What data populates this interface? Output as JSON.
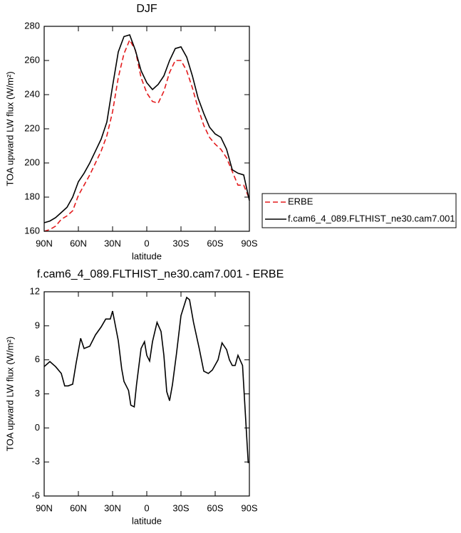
{
  "chart_data": [
    {
      "type": "line",
      "title": "DJF",
      "xlabel": "latitude",
      "ylabel": "TOA upward LW flux (W/m²)",
      "x": [
        90,
        85,
        80,
        75,
        70,
        65,
        60,
        55,
        50,
        45,
        40,
        35,
        30,
        25,
        20,
        15,
        10,
        5,
        0,
        -5,
        -10,
        -15,
        -20,
        -25,
        -30,
        -35,
        -40,
        -45,
        -50,
        -55,
        -60,
        -65,
        -70,
        -75,
        -80,
        -85,
        -90
      ],
      "series": [
        {
          "name": "ERBE",
          "color": "#e31a1c",
          "line_style": "dashed",
          "values": [
            160,
            161,
            163,
            167,
            169,
            172,
            181,
            187,
            193,
            200,
            207,
            216,
            230,
            250,
            264,
            272,
            266,
            250,
            241,
            236,
            235,
            242,
            253,
            260,
            260,
            254,
            244,
            232,
            222,
            215,
            211,
            208,
            203,
            195,
            187,
            187,
            179
          ]
        },
        {
          "name": "f.cam6_4_089.FLTHIST_ne30.cam7.001",
          "color": "#000000",
          "line_style": "solid",
          "values": [
            165,
            166,
            168,
            171,
            174,
            180,
            189,
            194,
            200,
            207,
            214,
            224,
            245,
            265,
            274,
            275,
            266,
            254,
            247,
            243,
            246,
            251,
            260,
            267,
            268,
            262,
            251,
            238,
            229,
            221,
            217,
            215,
            208,
            196,
            194,
            193,
            178
          ]
        }
      ],
      "xlim": [
        90,
        -90
      ],
      "xticks": [
        {
          "value": 90,
          "label": "90N"
        },
        {
          "value": 60,
          "label": "60N"
        },
        {
          "value": 30,
          "label": "30N"
        },
        0,
        {
          "value": -30,
          "label": "30S"
        },
        {
          "value": -60,
          "label": "60S"
        },
        {
          "value": -90,
          "label": "90S"
        }
      ],
      "ylim": [
        160,
        280
      ],
      "yticks": [
        160,
        180,
        200,
        220,
        240,
        260,
        280
      ],
      "legend": "right"
    },
    {
      "type": "line",
      "title": "f.cam6_4_089.FLTHIST_ne30.cam7.001 - ERBE",
      "xlabel": "latitude",
      "ylabel": "TOA upward LW flux (W/m²)",
      "x": [
        90,
        85,
        80,
        75,
        72,
        69,
        65,
        62,
        58,
        55,
        50,
        45,
        40,
        36,
        32,
        30,
        25,
        22,
        20,
        16,
        14,
        11,
        9,
        5,
        2,
        0,
        -2.5,
        -5,
        -9,
        -12.5,
        -15,
        -17.5,
        -20,
        -22.5,
        -26,
        -30,
        -35,
        -37.5,
        -41,
        -46,
        -50,
        -54,
        -57.5,
        -62.5,
        -66,
        -70,
        -72.5,
        -75,
        -77.5,
        -80,
        -84,
        -89
      ],
      "values": [
        5.4,
        5.85,
        5.4,
        4.8,
        3.7,
        3.7,
        3.85,
        5.7,
        7.9,
        7.0,
        7.2,
        8.2,
        8.9,
        9.6,
        9.6,
        10.3,
        7.7,
        5.2,
        4.1,
        3.3,
        2.0,
        1.85,
        3.8,
        7.0,
        7.6,
        6.4,
        5.9,
        7.6,
        9.3,
        8.5,
        6.4,
        3.2,
        2.4,
        3.8,
        6.5,
        9.9,
        11.5,
        11.3,
        9.3,
        7.0,
        5.0,
        4.8,
        5.1,
        6.0,
        7.5,
        6.9,
        6.0,
        5.5,
        5.5,
        6.4,
        5.5,
        -3.1
      ],
      "color": "#000000",
      "line_style": "solid",
      "xlim": [
        90,
        -90
      ],
      "xticks": [
        {
          "value": 90,
          "label": "90N"
        },
        {
          "value": 60,
          "label": "60N"
        },
        {
          "value": 30,
          "label": "30N"
        },
        0,
        {
          "value": -30,
          "label": "30S"
        },
        {
          "value": -60,
          "label": "60S"
        },
        {
          "value": -90,
          "label": "90S"
        }
      ],
      "ylim": [
        -6,
        12
      ],
      "yticks": [
        -6,
        -3,
        0,
        3,
        6,
        9,
        12
      ]
    }
  ]
}
